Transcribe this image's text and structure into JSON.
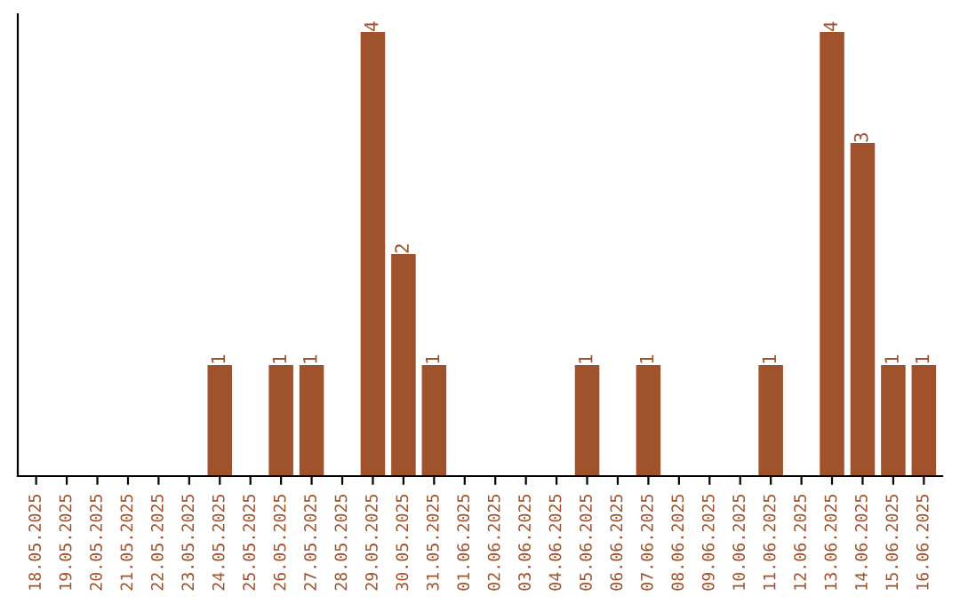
{
  "chart_data": {
    "type": "bar",
    "categories": [
      "18.05.2025",
      "19.05.2025",
      "20.05.2025",
      "21.05.2025",
      "22.05.2025",
      "23.05.2025",
      "24.05.2025",
      "25.05.2025",
      "26.05.2025",
      "27.05.2025",
      "28.05.2025",
      "29.05.2025",
      "30.05.2025",
      "31.05.2025",
      "01.06.2025",
      "02.06.2025",
      "03.06.2025",
      "04.06.2025",
      "05.06.2025",
      "06.06.2025",
      "07.06.2025",
      "08.06.2025",
      "09.06.2025",
      "10.06.2025",
      "11.06.2025",
      "12.06.2025",
      "13.06.2025",
      "14.06.2025",
      "15.06.2025",
      "16.06.2025"
    ],
    "values": [
      0,
      0,
      0,
      0,
      0,
      0,
      1,
      0,
      1,
      1,
      0,
      4,
      2,
      1,
      0,
      0,
      0,
      0,
      1,
      0,
      1,
      0,
      0,
      0,
      1,
      0,
      4,
      3,
      1,
      1
    ],
    "color": "#a0522d",
    "value_labels": [
      null,
      null,
      null,
      null,
      null,
      null,
      "1",
      null,
      "1",
      "1",
      null,
      "4",
      "2",
      "1",
      null,
      null,
      null,
      null,
      "1",
      null,
      "1",
      null,
      null,
      null,
      "1",
      null,
      "4",
      "3",
      "1",
      "1"
    ],
    "grid": false,
    "legend": false
  }
}
